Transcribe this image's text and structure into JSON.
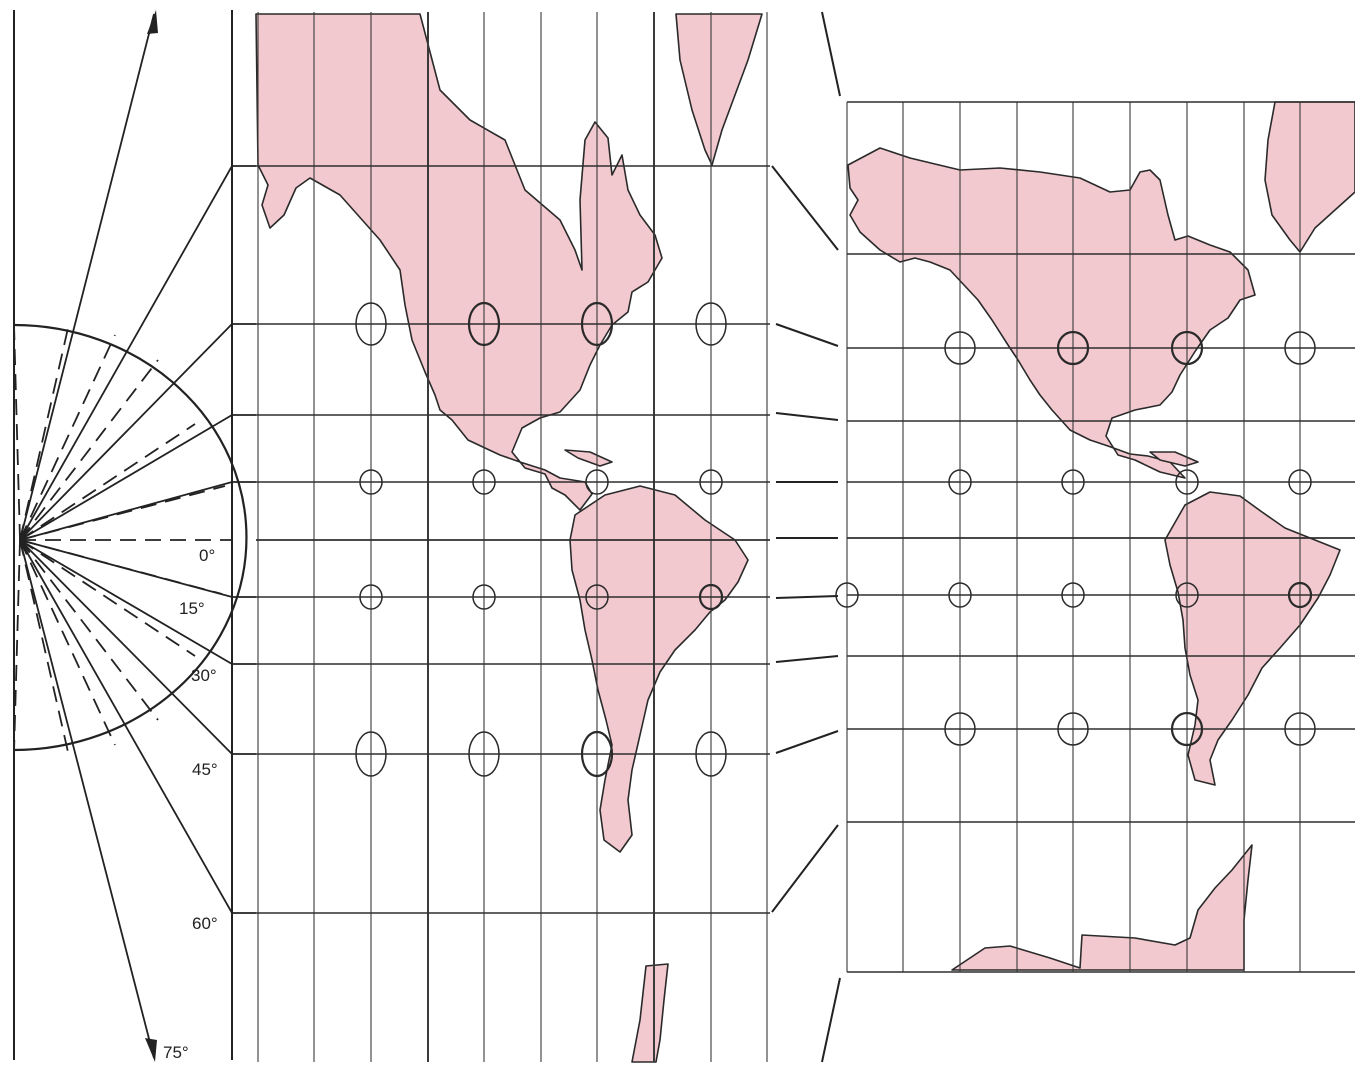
{
  "figure": {
    "latitude_labels": [
      {
        "id": "0",
        "text": "0°"
      },
      {
        "id": "15",
        "text": "15°"
      },
      {
        "id": "30",
        "text": "30°"
      },
      {
        "id": "45",
        "text": "45°"
      },
      {
        "id": "60",
        "text": "60°"
      },
      {
        "id": "75",
        "text": "75°"
      }
    ],
    "colors": {
      "land": "#f2c9cf",
      "outline": "#2a2a2a",
      "grid": "#3a3a3a",
      "background": "#ffffff"
    }
  }
}
